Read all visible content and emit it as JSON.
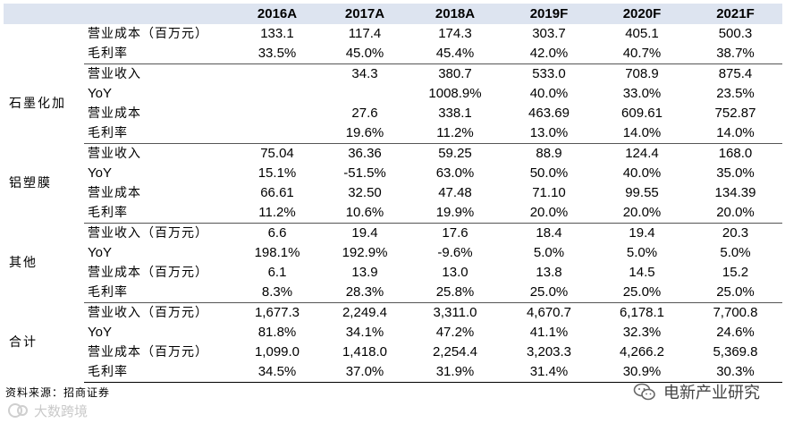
{
  "header": {
    "columns": [
      "2016A",
      "2017A",
      "2018A",
      "2019F",
      "2020F",
      "2021F"
    ]
  },
  "groups": [
    {
      "segment": "",
      "rows": [
        {
          "metric": "营业成本（百万元）",
          "values": [
            "133.1",
            "117.4",
            "174.3",
            "303.7",
            "405.1",
            "500.3"
          ]
        },
        {
          "metric": "毛利率",
          "values": [
            "33.5%",
            "45.0%",
            "45.4%",
            "42.0%",
            "40.7%",
            "38.7%"
          ]
        }
      ]
    },
    {
      "segment": "石墨化加",
      "rows": [
        {
          "metric": "营业收入",
          "values": [
            "",
            "34.3",
            "380.7",
            "533.0",
            "708.9",
            "875.4"
          ]
        },
        {
          "metric": "YoY",
          "values": [
            "",
            "",
            "1008.9%",
            "40.0%",
            "33.0%",
            "23.5%"
          ]
        },
        {
          "metric": "营业成本",
          "values": [
            "",
            "27.6",
            "338.1",
            "463.69",
            "609.61",
            "752.87"
          ]
        },
        {
          "metric": "毛利率",
          "values": [
            "",
            "19.6%",
            "11.2%",
            "13.0%",
            "14.0%",
            "14.0%"
          ]
        }
      ]
    },
    {
      "segment": "铝塑膜",
      "rows": [
        {
          "metric": "营业收入",
          "values": [
            "75.04",
            "36.36",
            "59.25",
            "88.9",
            "124.4",
            "168.0"
          ]
        },
        {
          "metric": "YoY",
          "values": [
            "15.1%",
            "-51.5%",
            "63.0%",
            "50.0%",
            "40.0%",
            "35.0%"
          ]
        },
        {
          "metric": "营业成本",
          "values": [
            "66.61",
            "32.50",
            "47.48",
            "71.10",
            "99.55",
            "134.39"
          ]
        },
        {
          "metric": "毛利率",
          "values": [
            "11.2%",
            "10.6%",
            "19.9%",
            "20.0%",
            "20.0%",
            "20.0%"
          ]
        }
      ]
    },
    {
      "segment": "其他",
      "rows": [
        {
          "metric": "营业收入（百万元）",
          "values": [
            "6.6",
            "19.4",
            "17.6",
            "18.4",
            "19.4",
            "20.3"
          ]
        },
        {
          "metric": "YoY",
          "values": [
            "198.1%",
            "192.9%",
            "-9.6%",
            "5.0%",
            "5.0%",
            "5.0%"
          ]
        },
        {
          "metric": "营业成本（百万元）",
          "values": [
            "6.1",
            "13.9",
            "13.0",
            "13.8",
            "14.5",
            "15.2"
          ]
        },
        {
          "metric": "毛利率",
          "values": [
            "8.3%",
            "28.3%",
            "25.8%",
            "25.0%",
            "25.0%",
            "25.0%"
          ]
        }
      ]
    },
    {
      "segment": "合计",
      "rows": [
        {
          "metric": "营业收入（百万元）",
          "values": [
            "1,677.3",
            "2,249.4",
            "3,311.0",
            "4,670.7",
            "6,178.1",
            "7,700.8"
          ]
        },
        {
          "metric": "YoY",
          "values": [
            "81.8%",
            "34.1%",
            "47.2%",
            "41.1%",
            "32.3%",
            "24.6%"
          ]
        },
        {
          "metric": "营业成本（百万元）",
          "values": [
            "1,099.0",
            "1,418.0",
            "2,254.4",
            "3,203.3",
            "4,266.2",
            "5,369.8"
          ]
        },
        {
          "metric": "毛利率",
          "values": [
            "34.5%",
            "37.0%",
            "31.9%",
            "31.4%",
            "30.9%",
            "30.3%"
          ]
        }
      ]
    }
  ],
  "footer": {
    "source": "资料来源：招商证券"
  },
  "watermarks": {
    "left": "大数跨境",
    "right": "电新产业研究"
  }
}
